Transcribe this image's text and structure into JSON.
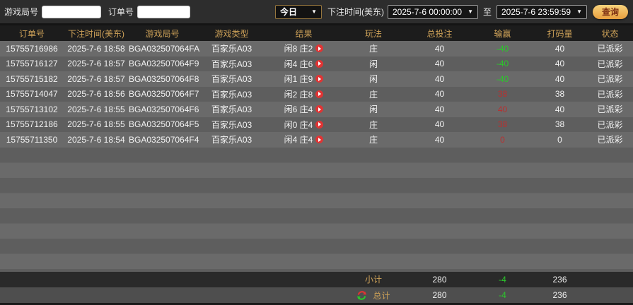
{
  "filters": {
    "game_round_label": "游戏局号",
    "order_no_label": "订单号",
    "game_round_value": "",
    "order_no_value": "",
    "date_preset": "今日",
    "bet_time_label": "下注时间(美东)",
    "start_time": "2025-7-6 00:00:00",
    "to_label": "至",
    "end_time": "2025-7-6 23:59:59",
    "query_label": "查询",
    "chevron": "▼"
  },
  "table": {
    "headers": [
      "订单号",
      "下注时间(美东)",
      "游戏局号",
      "游戏类型",
      "结果",
      "玩法",
      "总投注",
      "输赢",
      "打码量",
      "状态"
    ],
    "rows": [
      {
        "order_no": "15755716986",
        "bet_time": "2025-7-6 18:58",
        "round_no": "BGA032507064FA",
        "game_type": "百家乐A03",
        "result": "闲8 庄2",
        "play": "庄",
        "total_bet": "40",
        "win_loss": "-40",
        "win_color": "green",
        "turnover": "40",
        "status": "已派彩"
      },
      {
        "order_no": "15755716127",
        "bet_time": "2025-7-6 18:57",
        "round_no": "BGA032507064F9",
        "game_type": "百家乐A03",
        "result": "闲4 庄6",
        "play": "闲",
        "total_bet": "40",
        "win_loss": "-40",
        "win_color": "green",
        "turnover": "40",
        "status": "已派彩"
      },
      {
        "order_no": "15755715182",
        "bet_time": "2025-7-6 18:57",
        "round_no": "BGA032507064F8",
        "game_type": "百家乐A03",
        "result": "闲1 庄9",
        "play": "闲",
        "total_bet": "40",
        "win_loss": "-40",
        "win_color": "green",
        "turnover": "40",
        "status": "已派彩"
      },
      {
        "order_no": "15755714047",
        "bet_time": "2025-7-6 18:56",
        "round_no": "BGA032507064F7",
        "game_type": "百家乐A03",
        "result": "闲2 庄8",
        "play": "庄",
        "total_bet": "40",
        "win_loss": "38",
        "win_color": "red",
        "turnover": "38",
        "status": "已派彩"
      },
      {
        "order_no": "15755713102",
        "bet_time": "2025-7-6 18:55",
        "round_no": "BGA032507064F6",
        "game_type": "百家乐A03",
        "result": "闲6 庄4",
        "play": "闲",
        "total_bet": "40",
        "win_loss": "40",
        "win_color": "red",
        "turnover": "40",
        "status": "已派彩"
      },
      {
        "order_no": "15755712186",
        "bet_time": "2025-7-6 18:55",
        "round_no": "BGA032507064F5",
        "game_type": "百家乐A03",
        "result": "闲0 庄4",
        "play": "庄",
        "total_bet": "40",
        "win_loss": "38",
        "win_color": "red",
        "turnover": "38",
        "status": "已派彩"
      },
      {
        "order_no": "15755711350",
        "bet_time": "2025-7-6 18:54",
        "round_no": "BGA032507064F4",
        "game_type": "百家乐A03",
        "result": "闲4 庄4",
        "play": "庄",
        "total_bet": "40",
        "win_loss": "0",
        "win_color": "red",
        "turnover": "0",
        "status": "已派彩"
      }
    ],
    "subtotal": {
      "label": "小计",
      "total_bet": "280",
      "win_loss": "-4",
      "win_color": "green",
      "turnover": "236"
    },
    "total": {
      "label": "总计",
      "total_bet": "280",
      "win_loss": "-4",
      "win_color": "green",
      "turnover": "236"
    }
  },
  "colors": {
    "accent_gold": "#cda158",
    "win_positive_red": "#b93030",
    "loss_negative_green": "#2bc82b",
    "query_button_gold": "#eeb054",
    "row_light": "#6a6a6a",
    "row_dark": "#5e5e5e",
    "header_bg": "#1c1c1c",
    "play_button_red": "#e03434"
  }
}
